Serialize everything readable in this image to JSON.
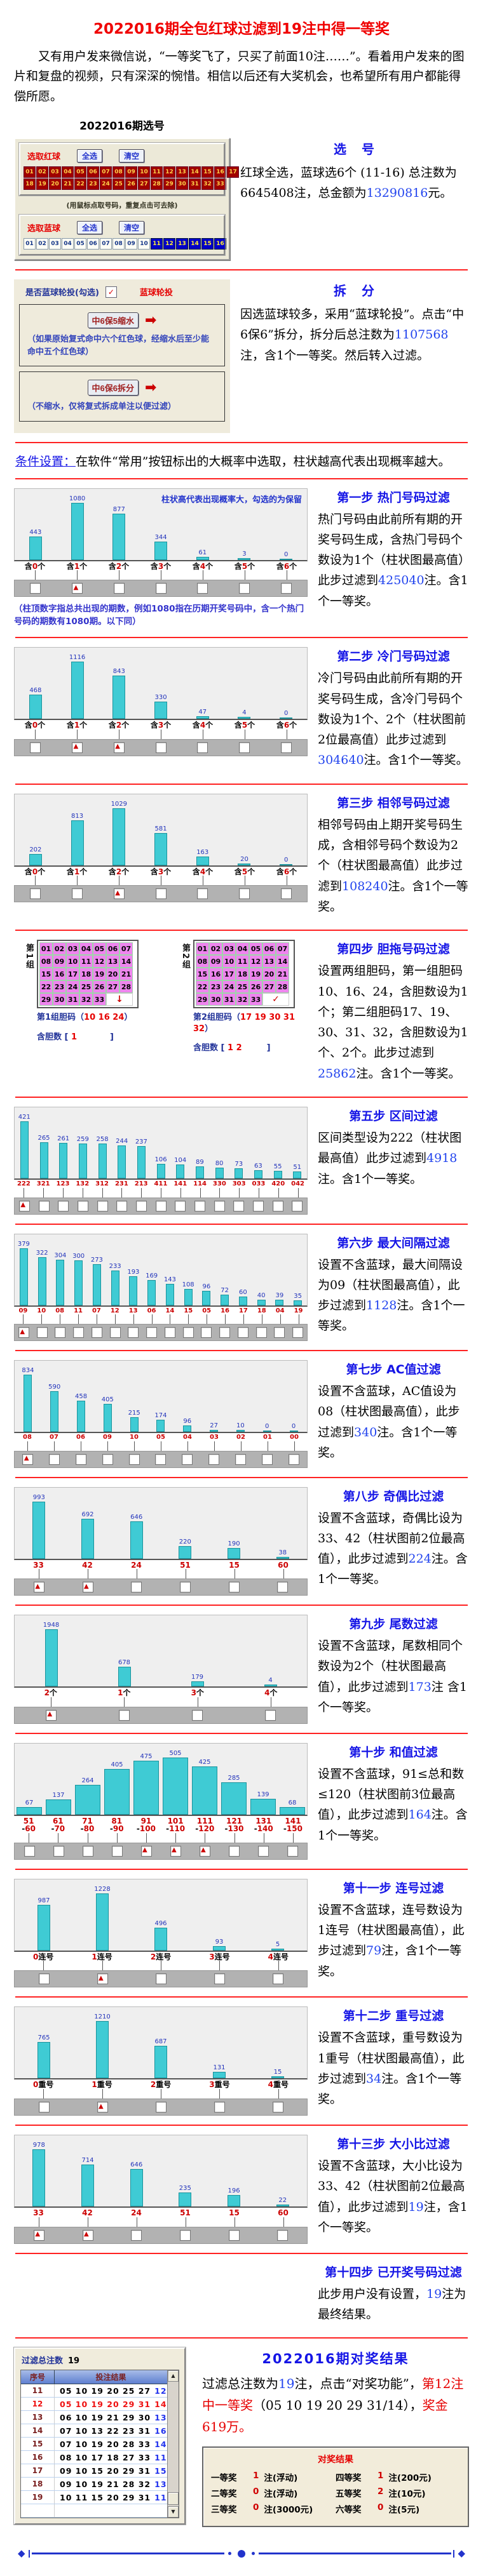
{
  "page": {
    "title": "2022016期全包红球过滤到19注中得一等奖",
    "intro": "又有用户发来微信说，“一等奖飞了，只买了前面10注……”。看着用户发来的图片和复盘的视频，只有深深的惋惜。相信以后还有大奖机会，也希望所有用户都能得偿所愿。"
  },
  "selection": {
    "heading": "2022016期选号",
    "red_panel_label": "选取红球",
    "blue_panel_label": "选取蓝球",
    "select_all": "全选",
    "clear": "清空",
    "mouse_tip": "(用鼠标点取号码，重复点击可去除)",
    "red_row1": [
      "01",
      "02",
      "03",
      "04",
      "05",
      "06",
      "07",
      "08",
      "09",
      "10",
      "11",
      "12",
      "13",
      "14",
      "15",
      "16",
      "17"
    ],
    "red_row2": [
      "18",
      "19",
      "20",
      "21",
      "22",
      "23",
      "24",
      "25",
      "26",
      "27",
      "28",
      "29",
      "30",
      "31",
      "32",
      "33"
    ],
    "blue_balls": [
      "01",
      "02",
      "03",
      "04",
      "05",
      "06",
      "07",
      "08",
      "09",
      "10",
      "11",
      "12",
      "13",
      "14",
      "15",
      "16"
    ],
    "blue_selected": [
      "11",
      "12",
      "13",
      "14",
      "15",
      "16"
    ],
    "right_heading": "选　号",
    "right_text": [
      {
        "t": "红球全选，蓝球选6个 (11-16) 总注数为6645408注，总金额为",
        "c": "k"
      },
      {
        "t": "13290816",
        "c": "b"
      },
      {
        "t": "元。",
        "c": "k"
      }
    ]
  },
  "split": {
    "rotate_label": "是否蓝球轮投(勾选)",
    "rotate_check": "✓",
    "rotate_link": "蓝球轮投",
    "btn1": "中6保5缩水",
    "btn1_note": "（如果原始复式命中六个红色球，经缩水后至少能命中五个红色球）",
    "btn2": "中6保6拆分",
    "btn2_note": "（不缩水，仅将复式拆成单注以便过滤）",
    "arrow": "➡",
    "heading": "拆　分",
    "text": [
      {
        "t": "因选蓝球较多，采用“蓝球轮投”。点击“中6保6”拆分，拆分后总注数为",
        "c": "k"
      },
      {
        "t": "1107568",
        "c": "b"
      },
      {
        "t": "注，含1个一等奖。然后转入过滤。",
        "c": "k"
      }
    ]
  },
  "condition": [
    {
      "t": "条件设置：",
      "c": "bu"
    },
    {
      "t": "在软件“常用”按钮标出的大概率中选取，柱状越高代表出现概率越大。",
      "c": "k"
    }
  ],
  "steps": [
    {
      "heading": "第一步 热门号码过滤",
      "text": [
        {
          "t": "热门号码由此前所有期的开奖号码生成，含热门号码个数设为1个（柱状图最高值）此步过滤到",
          "c": "k"
        },
        {
          "t": "425040",
          "c": "b"
        },
        {
          "t": "注。含1个一等奖。",
          "c": "k"
        }
      ],
      "chart": {
        "type": "bar",
        "values": [
          443,
          1080,
          877,
          344,
          61,
          3,
          0
        ],
        "labels": [
          "含0个",
          "含1个",
          "含2个",
          "含3个",
          "含4个",
          "含5个",
          "含6个"
        ],
        "checked": [
          1
        ],
        "annotation": "柱状高代表出现概率大，勾选的为保留"
      },
      "note": "（柱顶数字指总共出现的期数，例如1080指在历期开奖号码中，含一个热门号码的期数有1080期。以下同）"
    },
    {
      "heading": "第二步 冷门号码过滤",
      "text": [
        {
          "t": "冷门号码由此前所有期的开奖号码生成，含冷门号码个数设为1个、2个（柱状图前2位最高值）此步过滤到",
          "c": "k"
        },
        {
          "t": "304640",
          "c": "b"
        },
        {
          "t": "注。含1个一等奖。",
          "c": "k"
        }
      ],
      "chart": {
        "type": "bar",
        "values": [
          468,
          1116,
          843,
          330,
          47,
          4,
          0
        ],
        "labels": [
          "含0个",
          "含1个",
          "含2个",
          "含3个",
          "含4个",
          "含5个",
          "含6个"
        ],
        "checked": [
          1,
          2
        ]
      }
    },
    {
      "heading": "第三步 相邻号码过滤",
      "text": [
        {
          "t": "相邻号码由上期开奖号码生成，含相邻号码个数设为2个（柱状图最高值）此步过滤到",
          "c": "k"
        },
        {
          "t": "108240",
          "c": "b"
        },
        {
          "t": "注。含1个一等奖。",
          "c": "k"
        }
      ],
      "chart": {
        "type": "bar",
        "values": [
          202,
          813,
          1029,
          581,
          163,
          20,
          0
        ],
        "labels": [
          "含0个",
          "含1个",
          "含2个",
          "含3个",
          "含4个",
          "含5个",
          "含6个"
        ],
        "checked": [
          2
        ]
      }
    },
    {
      "heading": "第四步 胆拖号码过滤",
      "text": [
        {
          "t": "设置两组胆码，第一组胆码10、16、24，含胆数设为1个；第二组胆码17、19、30、31、32，含胆数设为1个、2个。此步过滤到",
          "c": "k"
        },
        {
          "t": "25862",
          "c": "b"
        },
        {
          "t": "注。含1个一等奖。",
          "c": "k"
        }
      ],
      "groups": [
        {
          "label": "第1组",
          "mark": "↓",
          "caption": [
            {
              "t": "第1组胆码（",
              "c": "n"
            },
            {
              "t": "10 16 24",
              "c": "r"
            },
            {
              "t": "）",
              "c": "n"
            }
          ],
          "dan": [
            {
              "t": "含胆数 [ ",
              "c": "n"
            },
            {
              "t": "1",
              "c": "r"
            },
            {
              "t": "　　　　]",
              "c": "n"
            }
          ]
        },
        {
          "label": "第2组",
          "mark": "✓",
          "caption": [
            {
              "t": "第2组胆码（",
              "c": "n"
            },
            {
              "t": "17 19 30 31 32",
              "c": "r"
            },
            {
              "t": "）",
              "c": "n"
            }
          ],
          "dan": [
            {
              "t": "含胆数 [ ",
              "c": "n"
            },
            {
              "t": "1 2",
              "c": "r"
            },
            {
              "t": "　　　]",
              "c": "n"
            }
          ]
        }
      ]
    },
    {
      "heading": "第五步 区间过滤",
      "text": [
        {
          "t": "区间类型设为222（柱状图最高值）此步过滤到",
          "c": "k"
        },
        {
          "t": "4918",
          "c": "b"
        },
        {
          "t": "注。含1个一等奖。",
          "c": "k"
        }
      ],
      "chart": {
        "type": "bar",
        "values": [
          421,
          265,
          261,
          259,
          258,
          244,
          237,
          106,
          104,
          89,
          80,
          73,
          63,
          55,
          51
        ],
        "labels": [
          "222",
          "321",
          "123",
          "132",
          "312",
          "231",
          "213",
          "411",
          "141",
          "114",
          "330",
          "303",
          "033",
          "420",
          "042"
        ],
        "checked": [
          0
        ]
      }
    },
    {
      "heading": "第六步 最大间隔过滤",
      "text": [
        {
          "t": "设置不含蓝球，最大间隔设为09（柱状图最高值），此步过滤到",
          "c": "k"
        },
        {
          "t": "1128",
          "c": "b"
        },
        {
          "t": "注。含1个一等奖。",
          "c": "k"
        }
      ],
      "chart": {
        "type": "bar",
        "values": [
          379,
          322,
          304,
          300,
          273,
          233,
          193,
          169,
          143,
          108,
          96,
          72,
          60,
          40,
          39,
          35
        ],
        "labels": [
          "09",
          "10",
          "08",
          "11",
          "07",
          "12",
          "13",
          "06",
          "14",
          "15",
          "05",
          "16",
          "17",
          "18",
          "04",
          "19"
        ],
        "checked": [
          0
        ]
      }
    },
    {
      "heading": "第七步 AC值过滤",
      "text": [
        {
          "t": "设置不含蓝球，AC值设为08（柱状图最高值），此步过滤到",
          "c": "k"
        },
        {
          "t": "340",
          "c": "b"
        },
        {
          "t": "注。含1个一等奖。",
          "c": "k"
        }
      ],
      "chart": {
        "type": "bar",
        "values": [
          834,
          590,
          458,
          405,
          215,
          174,
          96,
          27,
          10,
          0,
          0
        ],
        "labels": [
          "08",
          "07",
          "06",
          "09",
          "10",
          "05",
          "04",
          "03",
          "02",
          "01",
          "00"
        ],
        "checked": [
          0
        ]
      }
    },
    {
      "heading": "第八步 奇偶比过滤",
      "text": [
        {
          "t": "设置不含蓝球，奇偶比设为33、42（柱状图前2位最高值），此步过滤到",
          "c": "k"
        },
        {
          "t": "224",
          "c": "b"
        },
        {
          "t": "注。含1个一等奖。",
          "c": "k"
        }
      ],
      "chart": {
        "type": "bar",
        "values": [
          993,
          692,
          646,
          220,
          190,
          38
        ],
        "labels": [
          "33",
          "42",
          "24",
          "51",
          "15",
          "60"
        ],
        "checked": [
          0,
          1
        ]
      }
    },
    {
      "heading": "第九步 尾数过滤",
      "text": [
        {
          "t": "设置不含蓝球，尾数相同个数设为2个（柱状图最高值），此步过滤到",
          "c": "k"
        },
        {
          "t": "173",
          "c": "b"
        },
        {
          "t": "注 含1个一等奖。",
          "c": "k"
        }
      ],
      "chart": {
        "type": "bar",
        "values": [
          1948,
          678,
          179,
          4
        ],
        "labels": [
          "2个",
          "1个",
          "3个",
          "4个"
        ],
        "checked": [
          0
        ]
      }
    },
    {
      "heading": "第十步 和值过滤",
      "text": [
        {
          "t": "设置不含蓝球，91≤总和数≤120（柱状图前3位最高值），此步过滤到",
          "c": "k"
        },
        {
          "t": "164",
          "c": "b"
        },
        {
          "t": "注。含1个一等奖。",
          "c": "k"
        }
      ],
      "chart": {
        "type": "bar",
        "histogram": true,
        "values": [
          67,
          137,
          264,
          405,
          475,
          505,
          425,
          285,
          139,
          68
        ],
        "labels": [
          "51\n-60",
          "61\n-70",
          "71\n-80",
          "81\n-90",
          "91\n-100",
          "101\n-110",
          "111\n-120",
          "121\n-130",
          "131\n-140",
          "141\n-150"
        ],
        "checked": [
          4,
          5,
          6
        ]
      }
    },
    {
      "heading": "第十一步 连号过滤",
      "text": [
        {
          "t": "设置不含蓝球，连号数设为1连号（柱状图最高值），此步过滤到",
          "c": "k"
        },
        {
          "t": "79",
          "c": "b"
        },
        {
          "t": "注，含1个一等奖。",
          "c": "k"
        }
      ],
      "chart": {
        "type": "bar",
        "values": [
          987,
          1228,
          496,
          93,
          5
        ],
        "labels": [
          "0连号",
          "1连号",
          "2连号",
          "3连号",
          "4连号"
        ],
        "checked": [
          1
        ]
      }
    },
    {
      "heading": "第十二步 重号过滤",
      "text": [
        {
          "t": "设置不含蓝球，重号数设为1重号（柱状图最高值），此步过滤到",
          "c": "k"
        },
        {
          "t": "34",
          "c": "b"
        },
        {
          "t": "注。含1个一等奖。",
          "c": "k"
        }
      ],
      "chart": {
        "type": "bar",
        "values": [
          765,
          1210,
          687,
          131,
          15
        ],
        "labels": [
          "0重号",
          "1重号",
          "2重号",
          "3重号",
          "4重号"
        ],
        "checked": [
          1
        ]
      }
    },
    {
      "heading": "第十三步 大小比过滤",
      "text": [
        {
          "t": "设置不含蓝球，大小比设为33、42（柱状图前2位最高值），此步过滤到",
          "c": "k"
        },
        {
          "t": "19",
          "c": "b"
        },
        {
          "t": "注，含1个一等奖。",
          "c": "k"
        }
      ],
      "chart": {
        "type": "bar",
        "values": [
          978,
          714,
          646,
          235,
          196,
          22
        ],
        "labels": [
          "33",
          "42",
          "24",
          "51",
          "15",
          "60"
        ],
        "checked": [
          0,
          1
        ]
      }
    },
    {
      "heading": "第十四步 已开奖号码过滤",
      "text": [
        {
          "t": "此步用户没有设置，",
          "c": "k"
        },
        {
          "t": "19",
          "c": "b"
        },
        {
          "t": "注为最终结果。",
          "c": "k"
        }
      ]
    }
  ],
  "result": {
    "heading": "2022016期对奖结果",
    "text": [
      {
        "t": "过滤总注数为",
        "c": "k"
      },
      {
        "t": "19",
        "c": "b"
      },
      {
        "t": "注，点击“对奖功能”，",
        "c": "k"
      },
      {
        "t": "第12注中一等奖",
        "c": "r"
      },
      {
        "t": "（05 10 19 20 29 31/14），",
        "c": "k"
      },
      {
        "t": "奖金619万。",
        "c": "r"
      }
    ],
    "list": {
      "title_label": "过滤总注数",
      "title_value": "19",
      "headers": [
        "序号",
        "投注结果"
      ],
      "rows": [
        {
          "no": "11",
          "red": "05 10 19 20 25 27",
          "blue": "12",
          "hl": false
        },
        {
          "no": "12",
          "red": "05 10 19 20 29 31",
          "blue": "14",
          "hl": true
        },
        {
          "no": "13",
          "red": "06 10 19 21 29 30",
          "blue": "13",
          "hl": false
        },
        {
          "no": "14",
          "red": "07 10 13 22 23 31",
          "blue": "16",
          "hl": false
        },
        {
          "no": "15",
          "red": "07 10 19 20 28 33",
          "blue": "14",
          "hl": false
        },
        {
          "no": "16",
          "red": "08 10 17 18 27 33",
          "blue": "11",
          "hl": false
        },
        {
          "no": "17",
          "red": "09 10 15 20 29 31",
          "blue": "15",
          "hl": false
        },
        {
          "no": "18",
          "red": "09 10 19 21 28 32",
          "blue": "13",
          "hl": false
        },
        {
          "no": "19",
          "red": "10 11 15 20 29 31",
          "blue": "11",
          "hl": false
        }
      ]
    },
    "prize": {
      "title": "对奖结果",
      "rows": [
        [
          {
            "label": "一等奖",
            "count": "1",
            "suffix": "注(浮动)"
          },
          {
            "label": "四等奖",
            "count": "1",
            "suffix": "注(200元)"
          }
        ],
        [
          {
            "label": "二等奖",
            "count": "0",
            "suffix": "注(浮动)"
          },
          {
            "label": "五等奖",
            "count": "2",
            "suffix": "注(10元)"
          }
        ],
        [
          {
            "label": "三等奖",
            "count": "0",
            "suffix": "注(3000元)"
          },
          {
            "label": "六等奖",
            "count": "0",
            "suffix": "注(5元)"
          }
        ]
      ]
    }
  },
  "colors": {
    "title_red": "#F00000",
    "heading_blue": "#1515E6",
    "link_blue": "#2244EE",
    "bar_teal": "#3FCBD4",
    "divider_red": "#FF2222",
    "red_ball_bg": "#A00000",
    "blue_ball_bg": "#0000C8",
    "dan_cell_pink": "#EE85EE"
  }
}
